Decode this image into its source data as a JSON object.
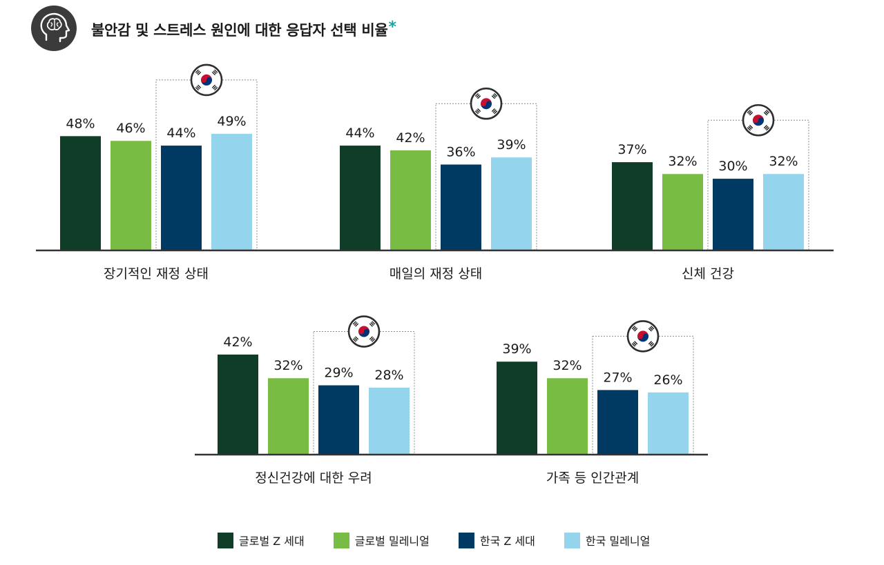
{
  "header": {
    "title": "불안감 및 스트레스 원인에 대한 응답자 선택 비율",
    "asterisk": "*",
    "icon": "head-brain-icon"
  },
  "colors": {
    "global_gen_z": "#0f3d28",
    "global_millennial": "#78bc43",
    "korea_gen_z": "#003a63",
    "korea_millennial": "#94d4ed",
    "axis": "#333333",
    "korea_box_border": "#8a8a8a",
    "asterisk": "#1aa3a3"
  },
  "korea_marker_icon": "korea-flag-icon",
  "chart_data": {
    "type": "bar",
    "unit": "%",
    "ylim": [
      0,
      60
    ],
    "series": [
      {
        "name": "글로벌 Z 세대",
        "color_key": "global_gen_z"
      },
      {
        "name": "글로벌 밀레니얼",
        "color_key": "global_millennial"
      },
      {
        "name": "한국 Z 세대",
        "color_key": "korea_gen_z"
      },
      {
        "name": "한국 밀레니얼",
        "color_key": "korea_millennial"
      }
    ],
    "rows": [
      {
        "groups": [
          {
            "category": "장기적인 재정 상태",
            "values": [
              48,
              46,
              44,
              49
            ]
          },
          {
            "category": "매일의 재정 상태",
            "values": [
              44,
              42,
              36,
              39
            ]
          },
          {
            "category": "신체 건강",
            "values": [
              37,
              32,
              30,
              32
            ]
          }
        ]
      },
      {
        "groups": [
          {
            "category": "정신건강에 대한 우려",
            "values": [
              42,
              32,
              29,
              28
            ]
          },
          {
            "category": "가족 등 인간관계",
            "values": [
              39,
              32,
              27,
              26
            ]
          }
        ]
      }
    ],
    "legend": [
      "글로벌 Z 세대",
      "글로벌 밀레니얼",
      "한국 Z 세대",
      "한국 밀레니얼"
    ],
    "legend_position": "bottom",
    "grid": false
  }
}
